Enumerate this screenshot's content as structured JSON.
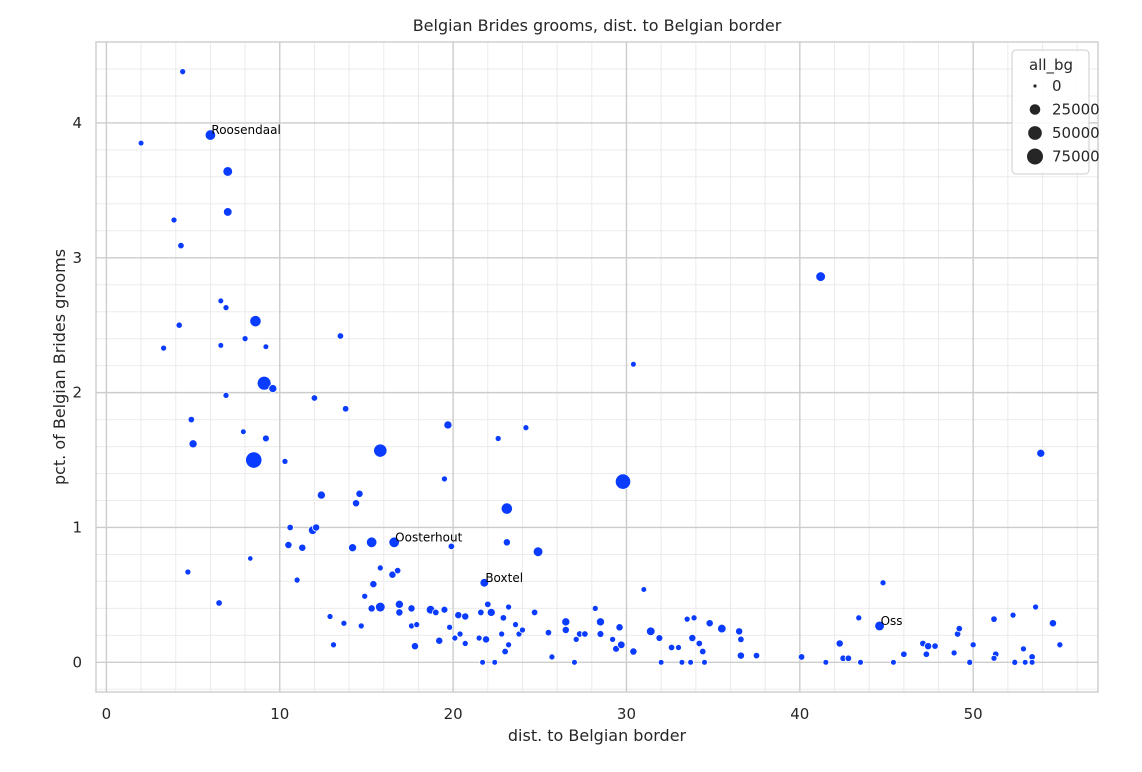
{
  "chart_data": {
    "type": "scatter",
    "title": "Belgian Brides grooms, dist. to Belgian border",
    "xlabel": "dist. to Belgian border",
    "ylabel": "pct. of Belgian Brides grooms",
    "xlim": [
      -0.6,
      57.2
    ],
    "ylim": [
      -0.22,
      4.6
    ],
    "xticks": [
      0,
      10,
      20,
      30,
      40,
      50
    ],
    "yticks": [
      0,
      1,
      2,
      3,
      4
    ],
    "grid": true,
    "point_color": "#0a3cff",
    "legend": {
      "title": "all_bg",
      "placement": "top-right",
      "entries": [
        {
          "label": "0",
          "size": 0
        },
        {
          "label": "25000",
          "size": 25000
        },
        {
          "label": "50000",
          "size": 50000
        },
        {
          "label": "75000",
          "size": 75000
        }
      ]
    },
    "annotations": [
      {
        "text": "Roosendaal",
        "x": 6.0,
        "y": 3.91
      },
      {
        "text": "Oosterhout",
        "x": 16.6,
        "y": 0.89
      },
      {
        "text": "Boxtel",
        "x": 21.8,
        "y": 0.59
      },
      {
        "text": "Oss",
        "x": 44.6,
        "y": 0.27
      }
    ],
    "points": [
      [
        4.4,
        4.38,
        2000
      ],
      [
        2.0,
        3.85,
        1500
      ],
      [
        6.0,
        3.91,
        20000
      ],
      [
        7.0,
        3.64,
        15000
      ],
      [
        3.9,
        3.28,
        2000
      ],
      [
        7.0,
        3.34,
        10000
      ],
      [
        4.3,
        3.09,
        3000
      ],
      [
        6.6,
        2.68,
        1500
      ],
      [
        6.9,
        2.63,
        2000
      ],
      [
        4.2,
        2.5,
        2500
      ],
      [
        3.3,
        2.33,
        2000
      ],
      [
        6.6,
        2.35,
        1500
      ],
      [
        8.6,
        2.53,
        25000
      ],
      [
        8.0,
        2.4,
        2000
      ],
      [
        9.2,
        2.34,
        1500
      ],
      [
        9.1,
        2.07,
        45000
      ],
      [
        9.6,
        2.03,
        8000
      ],
      [
        6.9,
        1.98,
        2000
      ],
      [
        4.9,
        1.8,
        3000
      ],
      [
        7.9,
        1.71,
        1500
      ],
      [
        5.0,
        1.62,
        8000
      ],
      [
        9.2,
        1.66,
        4000
      ],
      [
        8.5,
        1.5,
        70000
      ],
      [
        10.3,
        1.49,
        2000
      ],
      [
        12.0,
        1.96,
        3000
      ],
      [
        13.5,
        2.42,
        3000
      ],
      [
        13.8,
        1.88,
        3000
      ],
      [
        15.8,
        1.57,
        40000
      ],
      [
        19.7,
        1.76,
        8000
      ],
      [
        19.5,
        1.36,
        2000
      ],
      [
        22.6,
        1.66,
        2000
      ],
      [
        24.2,
        1.74,
        2000
      ],
      [
        30.4,
        2.21,
        1500
      ],
      [
        29.8,
        1.34,
        60000
      ],
      [
        41.2,
        2.86,
        15000
      ],
      [
        53.9,
        1.55,
        8000
      ],
      [
        12.4,
        1.24,
        8000
      ],
      [
        14.6,
        1.25,
        5000
      ],
      [
        14.4,
        1.18,
        5000
      ],
      [
        10.6,
        1.0,
        3000
      ],
      [
        11.9,
        0.98,
        10000
      ],
      [
        12.1,
        1.0,
        5000
      ],
      [
        10.5,
        0.87,
        5000
      ],
      [
        11.3,
        0.85,
        5000
      ],
      [
        14.2,
        0.85,
        8000
      ],
      [
        15.3,
        0.89,
        20000
      ],
      [
        16.6,
        0.89,
        20000
      ],
      [
        19.9,
        0.86,
        3000
      ],
      [
        23.1,
        1.14,
        25000
      ],
      [
        23.1,
        0.89,
        5000
      ],
      [
        24.9,
        0.82,
        15000
      ],
      [
        8.3,
        0.77,
        1000
      ],
      [
        4.7,
        0.67,
        2000
      ],
      [
        11.0,
        0.61,
        2000
      ],
      [
        6.5,
        0.44,
        3000
      ],
      [
        15.8,
        0.7,
        2000
      ],
      [
        16.5,
        0.65,
        5000
      ],
      [
        16.8,
        0.68,
        3000
      ],
      [
        15.4,
        0.58,
        5000
      ],
      [
        21.8,
        0.59,
        10000
      ],
      [
        31.0,
        0.54,
        1500
      ],
      [
        44.8,
        0.59,
        2000
      ],
      [
        14.9,
        0.49,
        2000
      ],
      [
        16.9,
        0.43,
        8000
      ],
      [
        15.3,
        0.4,
        5000
      ],
      [
        15.8,
        0.41,
        15000
      ],
      [
        16.9,
        0.37,
        5000
      ],
      [
        17.6,
        0.4,
        5000
      ],
      [
        18.7,
        0.39,
        10000
      ],
      [
        19.0,
        0.37,
        3000
      ],
      [
        19.5,
        0.39,
        4000
      ],
      [
        20.3,
        0.35,
        5000
      ],
      [
        20.7,
        0.34,
        5000
      ],
      [
        21.6,
        0.37,
        3000
      ],
      [
        22.0,
        0.43,
        3000
      ],
      [
        22.2,
        0.37,
        8000
      ],
      [
        22.9,
        0.33,
        3000
      ],
      [
        23.2,
        0.41,
        2000
      ],
      [
        24.7,
        0.37,
        3000
      ],
      [
        25.5,
        0.22,
        3000
      ],
      [
        26.5,
        0.3,
        8000
      ],
      [
        26.5,
        0.24,
        5000
      ],
      [
        27.3,
        0.21,
        3000
      ],
      [
        27.6,
        0.21,
        3000
      ],
      [
        28.2,
        0.4,
        2000
      ],
      [
        28.5,
        0.3,
        8000
      ],
      [
        28.5,
        0.21,
        4000
      ],
      [
        29.2,
        0.17,
        2000
      ],
      [
        29.6,
        0.26,
        5000
      ],
      [
        29.4,
        0.1,
        4000
      ],
      [
        29.7,
        0.13,
        6000
      ],
      [
        30.4,
        0.08,
        5000
      ],
      [
        31.4,
        0.23,
        10000
      ],
      [
        31.9,
        0.18,
        4000
      ],
      [
        32.6,
        0.11,
        3000
      ],
      [
        33.0,
        0.11,
        2000
      ],
      [
        33.5,
        0.32,
        2000
      ],
      [
        33.8,
        0.18,
        5000
      ],
      [
        33.9,
        0.33,
        2000
      ],
      [
        34.2,
        0.14,
        3000
      ],
      [
        34.4,
        0.08,
        3000
      ],
      [
        34.8,
        0.29,
        5000
      ],
      [
        35.5,
        0.25,
        10000
      ],
      [
        36.5,
        0.23,
        5000
      ],
      [
        36.6,
        0.17,
        3000
      ],
      [
        36.6,
        0.05,
        5000
      ],
      [
        37.5,
        0.05,
        3000
      ],
      [
        40.1,
        0.04,
        3000
      ],
      [
        42.3,
        0.14,
        5000
      ],
      [
        42.5,
        0.03,
        3000
      ],
      [
        42.8,
        0.03,
        3000
      ],
      [
        43.4,
        0.33,
        2000
      ],
      [
        44.6,
        0.27,
        15000
      ],
      [
        46.0,
        0.06,
        3000
      ],
      [
        47.1,
        0.14,
        3000
      ],
      [
        47.4,
        0.12,
        5000
      ],
      [
        47.3,
        0.06,
        3000
      ],
      [
        47.8,
        0.12,
        3000
      ],
      [
        48.9,
        0.07,
        2000
      ],
      [
        49.1,
        0.21,
        3000
      ],
      [
        49.2,
        0.25,
        3000
      ],
      [
        49.8,
        0.0,
        2000
      ],
      [
        50.0,
        0.13,
        2000
      ],
      [
        51.2,
        0.32,
        3000
      ],
      [
        51.3,
        0.06,
        3000
      ],
      [
        51.2,
        0.03,
        2000
      ],
      [
        52.3,
        0.35,
        2000
      ],
      [
        52.4,
        0.0,
        2000
      ],
      [
        52.9,
        0.1,
        2000
      ],
      [
        53.4,
        0.04,
        3000
      ],
      [
        53.6,
        0.41,
        2000
      ],
      [
        54.6,
        0.29,
        5000
      ],
      [
        55.0,
        0.13,
        2000
      ],
      [
        12.9,
        0.34,
        2000
      ],
      [
        13.1,
        0.13,
        2000
      ],
      [
        13.7,
        0.29,
        2000
      ],
      [
        14.7,
        0.27,
        2000
      ],
      [
        17.6,
        0.27,
        2000
      ],
      [
        17.8,
        0.12,
        5000
      ],
      [
        17.9,
        0.28,
        2000
      ],
      [
        19.2,
        0.16,
        5000
      ],
      [
        19.8,
        0.26,
        2000
      ],
      [
        20.1,
        0.18,
        2000
      ],
      [
        20.4,
        0.21,
        2000
      ],
      [
        20.7,
        0.14,
        2000
      ],
      [
        21.5,
        0.18,
        2000
      ],
      [
        21.9,
        0.17,
        5000
      ],
      [
        21.7,
        0.0,
        1500
      ],
      [
        22.4,
        0.0,
        1500
      ],
      [
        22.8,
        0.21,
        2000
      ],
      [
        23.0,
        0.08,
        3000
      ],
      [
        23.2,
        0.13,
        2000
      ],
      [
        23.6,
        0.28,
        2000
      ],
      [
        23.8,
        0.21,
        2000
      ],
      [
        24.0,
        0.24,
        2000
      ],
      [
        25.7,
        0.04,
        2000
      ],
      [
        27.0,
        0.0,
        1500
      ],
      [
        27.1,
        0.17,
        2000
      ],
      [
        32.0,
        0.0,
        1500
      ],
      [
        33.2,
        0.0,
        1500
      ],
      [
        33.7,
        0.0,
        1500
      ],
      [
        34.5,
        0.0,
        1500
      ],
      [
        41.5,
        0.0,
        1500
      ],
      [
        43.5,
        0.0,
        1500
      ],
      [
        45.4,
        0.0,
        1500
      ],
      [
        53.0,
        0.0,
        1500
      ],
      [
        53.4,
        0.0,
        1500
      ]
    ]
  }
}
